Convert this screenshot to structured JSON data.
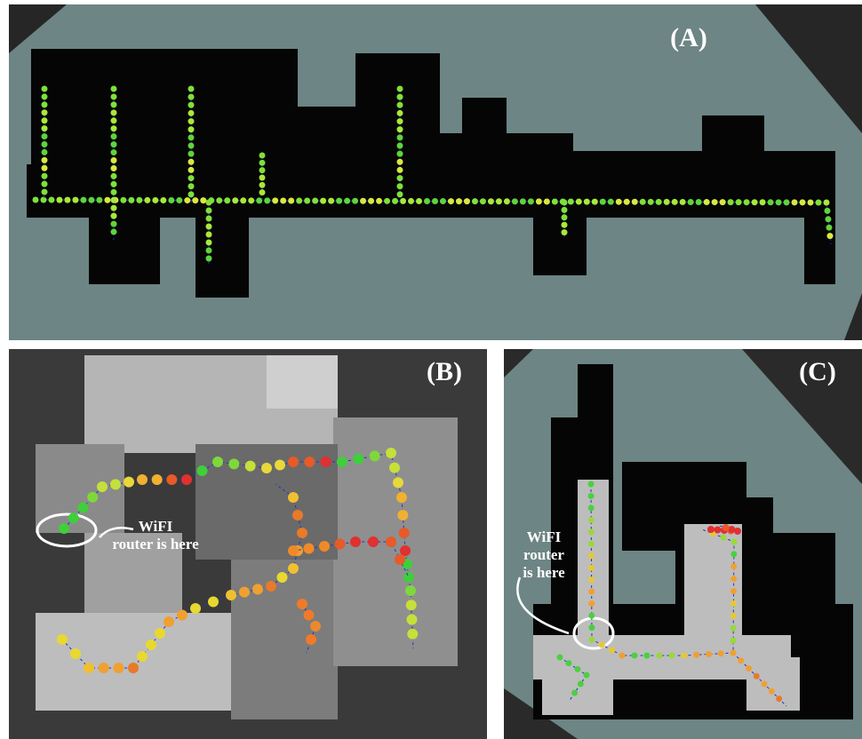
{
  "panels": [
    {
      "label": "(A)"
    },
    {
      "label": "(B)",
      "annotation": [
        "WiFI",
        "router is here"
      ]
    },
    {
      "label": "(C)",
      "annotation": [
        "WiFI",
        "router",
        "is here"
      ]
    }
  ]
}
